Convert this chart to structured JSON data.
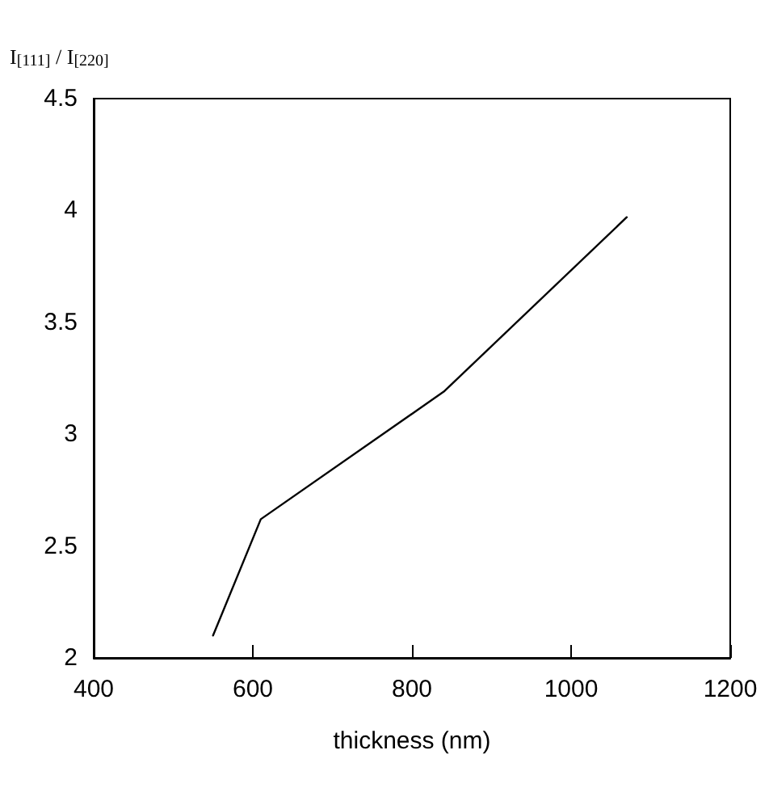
{
  "chart_data": {
    "type": "line",
    "xlabel": "thickness (nm)",
    "ylabel": "I$_{[111]}$ / I$_{[220]}$",
    "x": [
      550,
      610,
      840,
      1070
    ],
    "series": [
      {
        "color": "#000000",
        "values": [
          2.1,
          2.62,
          3.19,
          3.97
        ]
      }
    ],
    "xlim": [
      400,
      1200
    ],
    "xticks": [
      400,
      600,
      800,
      1000,
      1200
    ],
    "ylim": [
      2,
      4.5
    ],
    "yticks": [
      2,
      2.5,
      3,
      3.5,
      4,
      4.5
    ],
    "grid": false,
    "marker": "none",
    "line_style": "solid"
  }
}
